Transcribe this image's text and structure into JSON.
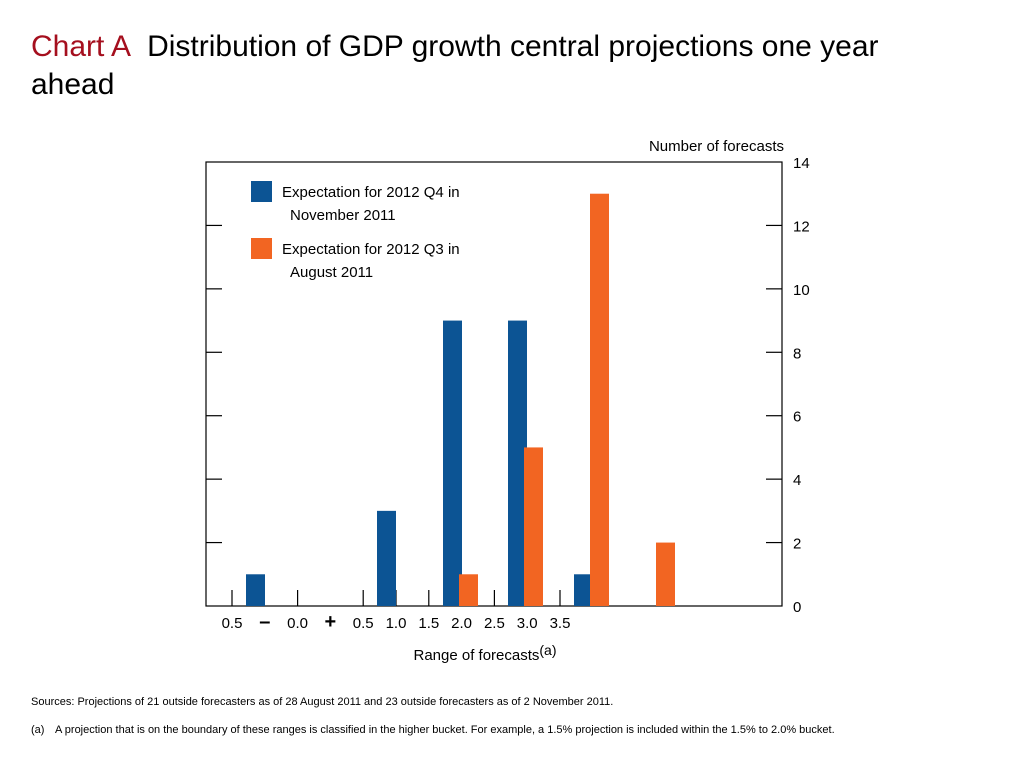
{
  "title": {
    "label": "Chart A",
    "text": "Distribution of GDP growth central projections one year ahead"
  },
  "colors": {
    "title_accent": "#a50f1e",
    "series_nov": "#0c5494",
    "series_aug": "#f26522",
    "axis": "#000000"
  },
  "chart_data": {
    "type": "bar",
    "xlabel": "Range of forecasts",
    "xlabel_note": "(a)",
    "ylabel": "Number of forecasts",
    "y_axis_side": "right",
    "ylim": [
      0,
      14
    ],
    "y_ticks": [
      0,
      2,
      4,
      6,
      8,
      10,
      12,
      14
    ],
    "x_tick_labels": [
      "0.5",
      "–",
      "0.0",
      "+",
      "0.5",
      "1.0",
      "1.5",
      "2.0",
      "2.5",
      "3.0",
      "3.5"
    ],
    "categories": [
      "-0.5 to 0.0",
      "0.0 to 0.5",
      "0.5 to 1.0",
      "1.0 to 1.5",
      "1.5 to 2.0",
      "2.0 to 2.5",
      "2.5 to 3.0",
      "3.0 to 3.5"
    ],
    "series": [
      {
        "name": "Expectation for 2012 Q4 in November 2011",
        "color": "#0c5494",
        "values": [
          1,
          0,
          3,
          9,
          9,
          1,
          0,
          0
        ]
      },
      {
        "name": "Expectation for 2012 Q3 in August 2011",
        "color": "#f26522",
        "values": [
          0,
          0,
          0,
          1,
          5,
          13,
          2,
          0
        ]
      }
    ],
    "legend": {
      "placement": "top-left",
      "entries": [
        {
          "line1": "Expectation for 2012 Q4 in",
          "line2": "November 2011",
          "color": "#0c5494"
        },
        {
          "line1": "Expectation for 2012 Q3 in",
          "line2": "August 2011",
          "color": "#f26522"
        }
      ]
    },
    "grid": false
  },
  "sources": "Sources:  Projections of 21 outside forecasters as of 28 August 2011 and 23 outside forecasters as of 2 November 2011.",
  "footnote": {
    "marker": "(a)",
    "text": "A projection that is on the boundary of these ranges is classified in the higher bucket.  For example, a 1.5% projection is included within the 1.5% to 2.0% bucket."
  }
}
